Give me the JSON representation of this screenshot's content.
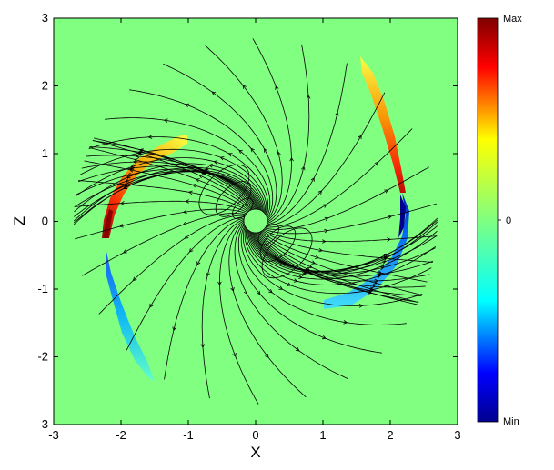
{
  "chart_data": {
    "type": "heatmap",
    "title": "",
    "xlabel": "X",
    "ylabel": "Z",
    "xlim": [
      -3,
      3
    ],
    "ylim": [
      -3,
      3
    ],
    "x_ticks": [
      "-3",
      "-2",
      "-1",
      "0",
      "1",
      "2",
      "3"
    ],
    "y_ticks": [
      "3",
      "2",
      "1",
      "0",
      "-1",
      "-2",
      "-3"
    ],
    "background_value": 0,
    "domain_radius": 2.7,
    "inner_body_radius": 0.12,
    "streamlines": "spiral field lines with direction arrows",
    "colorbar": {
      "colormap": "jet",
      "labels": [
        "Max",
        "0",
        "Min"
      ],
      "colors": [
        "#7f0000",
        "#ff0000",
        "#ffff00",
        "#80ff80",
        "#00ffff",
        "#0000ff",
        "#00008f"
      ]
    }
  }
}
